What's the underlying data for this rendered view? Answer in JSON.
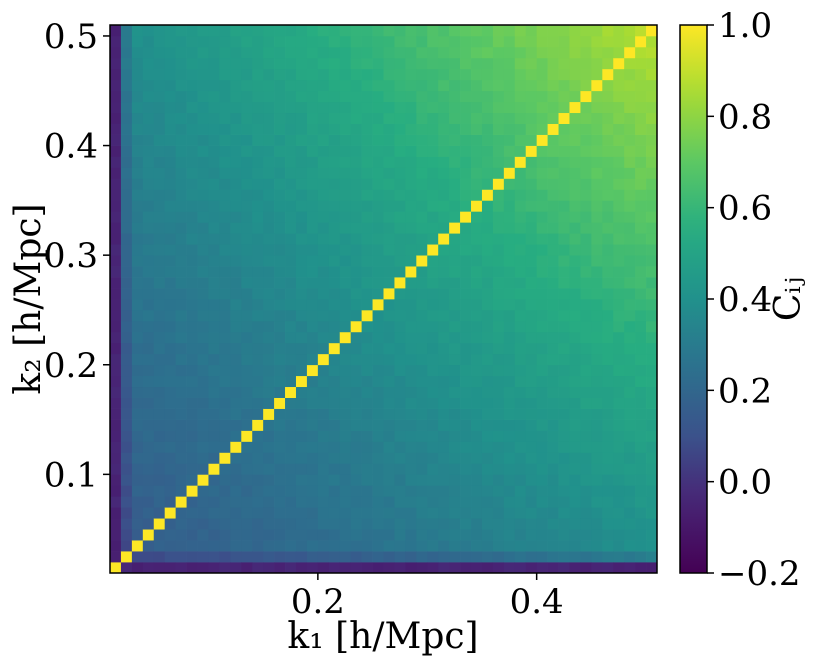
{
  "chart_data": {
    "type": "heatmap",
    "title": "",
    "xlabel": "k₁ [h/Mpc]",
    "ylabel": "k₂ [h/Mpc]",
    "colorbar_label": "Cᵢⱼ",
    "colormap": "viridis",
    "grid": false,
    "n_bins": 50,
    "xlim": [
      0.01,
      0.51
    ],
    "ylim": [
      0.01,
      0.51
    ],
    "clim": [
      -0.2,
      1.0
    ],
    "x_ticks": [
      {
        "value": 0.2,
        "label": "0.2"
      },
      {
        "value": 0.4,
        "label": "0.4"
      }
    ],
    "y_ticks": [
      {
        "value": 0.1,
        "label": "0.1"
      },
      {
        "value": 0.2,
        "label": "0.2"
      },
      {
        "value": 0.3,
        "label": "0.3"
      },
      {
        "value": 0.4,
        "label": "0.4"
      },
      {
        "value": 0.5,
        "label": "0.5"
      }
    ],
    "colorbar_ticks": [
      {
        "value": 1.0,
        "label": "1.0"
      },
      {
        "value": 0.8,
        "label": "0.8"
      },
      {
        "value": 0.6,
        "label": "0.6"
      },
      {
        "value": 0.4,
        "label": "0.4"
      },
      {
        "value": 0.2,
        "label": "0.2"
      },
      {
        "value": 0.0,
        "label": "0.0"
      },
      {
        "value": -0.2,
        "label": "−0.2"
      }
    ],
    "approx_values": {
      "diagonal": 1.0,
      "first_bin_row_col": -0.05,
      "corner_high_k": 0.8,
      "mid_range": 0.35,
      "low_k": 0.15
    }
  }
}
